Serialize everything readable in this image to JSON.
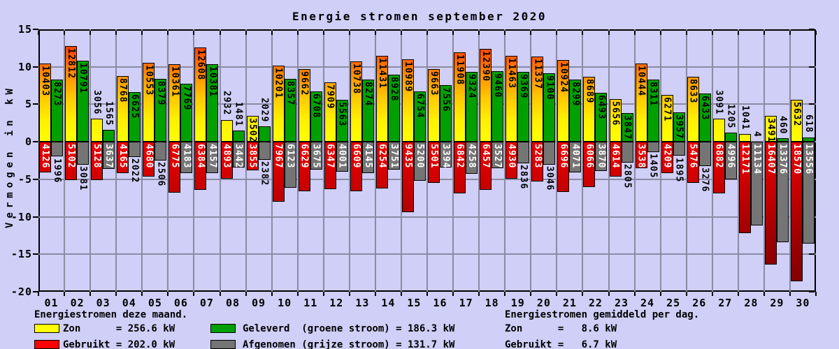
{
  "title": "Energie stromen september 2020",
  "y_axis": {
    "title": "Vermogen in kW",
    "tick_labels": [
      "15",
      "10",
      "5",
      "0",
      "-5",
      "-10",
      "-15",
      "-20"
    ],
    "tick_values": [
      15,
      10,
      5,
      0,
      -5,
      -10,
      -15,
      -20
    ]
  },
  "x_axis": {
    "tick_labels": [
      "01",
      "02",
      "03",
      "04",
      "05",
      "06",
      "07",
      "08",
      "09",
      "10",
      "11",
      "12",
      "13",
      "14",
      "15",
      "16",
      "17",
      "18",
      "19",
      "20",
      "21",
      "22",
      "23",
      "24",
      "25",
      "26",
      "27",
      "28",
      "29",
      "30"
    ]
  },
  "chart_data": {
    "type": "bar",
    "title": "Energie stromen september 2020",
    "xlabel": "",
    "ylabel": "Vermogen in kW",
    "ylim": [
      -20,
      15
    ],
    "grid": true,
    "value_unit": "W",
    "axis_unit": "kW",
    "categories": [
      "01",
      "02",
      "03",
      "04",
      "05",
      "06",
      "07",
      "08",
      "09",
      "10",
      "11",
      "12",
      "13",
      "14",
      "15",
      "16",
      "17",
      "18",
      "19",
      "20",
      "21",
      "22",
      "23",
      "24",
      "25",
      "26",
      "27",
      "28",
      "29",
      "30"
    ],
    "series": [
      {
        "name": "Zon",
        "style": "zon",
        "direction": "up",
        "column": 0,
        "color": "#ffff00",
        "values": [
          10403,
          12812,
          3056,
          8768,
          10553,
          10361,
          12608,
          2932,
          3502,
          10201,
          9662,
          7909,
          10738,
          11431,
          10989,
          9663,
          11908,
          12390,
          11463,
          11337,
          10924,
          8689,
          5656,
          10444,
          6271,
          8633,
          3091,
          1041,
          3491,
          5632
        ]
      },
      {
        "name": "Geleverd (groene stroom)",
        "style": "green",
        "direction": "up",
        "column": 1,
        "color": "#00a000",
        "values": [
          8273,
          10791,
          1565,
          6625,
          8379,
          7769,
          10381,
          1481,
          2029,
          8357,
          6708,
          5563,
          8274,
          8928,
          6754,
          7556,
          9324,
          9460,
          9369,
          9100,
          8299,
          6493,
          3847,
          8311,
          3957,
          6433,
          1205,
          4,
          460,
          618
        ]
      },
      {
        "name": "Gebruikt",
        "style": "red",
        "direction": "down",
        "column": 0,
        "color": "#e00000",
        "values": [
          4126,
          5102,
          5128,
          4165,
          4680,
          6775,
          6384,
          4893,
          3855,
          7967,
          6629,
          6347,
          6609,
          6254,
          9435,
          5501,
          6842,
          6457,
          4930,
          5283,
          6696,
          6066,
          4614,
          3538,
          4209,
          5476,
          6882,
          12171,
          16407,
          18570
        ]
      },
      {
        "name": "Afgenomen (grijze stroom)",
        "style": "grey",
        "direction": "down",
        "column": 1,
        "color": "#757575",
        "values": [
          1996,
          3081,
          3637,
          2022,
          2506,
          4183,
          4157,
          3442,
          2382,
          6123,
          3675,
          4001,
          4145,
          3751,
          5200,
          3394,
          4258,
          3527,
          2836,
          3046,
          4071,
          3870,
          2805,
          1405,
          1895,
          3276,
          4996,
          11134,
          13376,
          13556
        ]
      }
    ],
    "totals_kw": {
      "zon": 256.6,
      "gebruikt": 202.0,
      "geleverd": 186.3,
      "afgenomen": 131.7
    },
    "daily_avg_kw": {
      "zon": 8.6,
      "gebruikt": 6.7
    }
  },
  "legend": {
    "left": {
      "heading": "Energiestromen deze maand.",
      "rows": [
        {
          "id": "zon",
          "swatch": "#ffff00",
          "text": "Zon      = 256.6 kW"
        },
        {
          "id": "gebruikt",
          "swatch": "#ff0000",
          "text": "Gebruikt = 202.0 kW"
        }
      ]
    },
    "mid": {
      "rows": [
        {
          "id": "geleverd",
          "swatch": "#00a000",
          "text": "Geleverd  (groene stroom) = 186.3 kW"
        },
        {
          "id": "afgenomen",
          "swatch": "#757575",
          "text": "Afgenomen (grijze stroom) = 131.7 kW"
        }
      ]
    },
    "right": {
      "heading": "Energiestromen gemiddeld per dag.",
      "rows": [
        {
          "id": "zon-avg",
          "text": "Zon      =   8.6 kW"
        },
        {
          "id": "gebruikt-avg",
          "text": "Gebruikt =   6.7 kW"
        }
      ]
    }
  }
}
